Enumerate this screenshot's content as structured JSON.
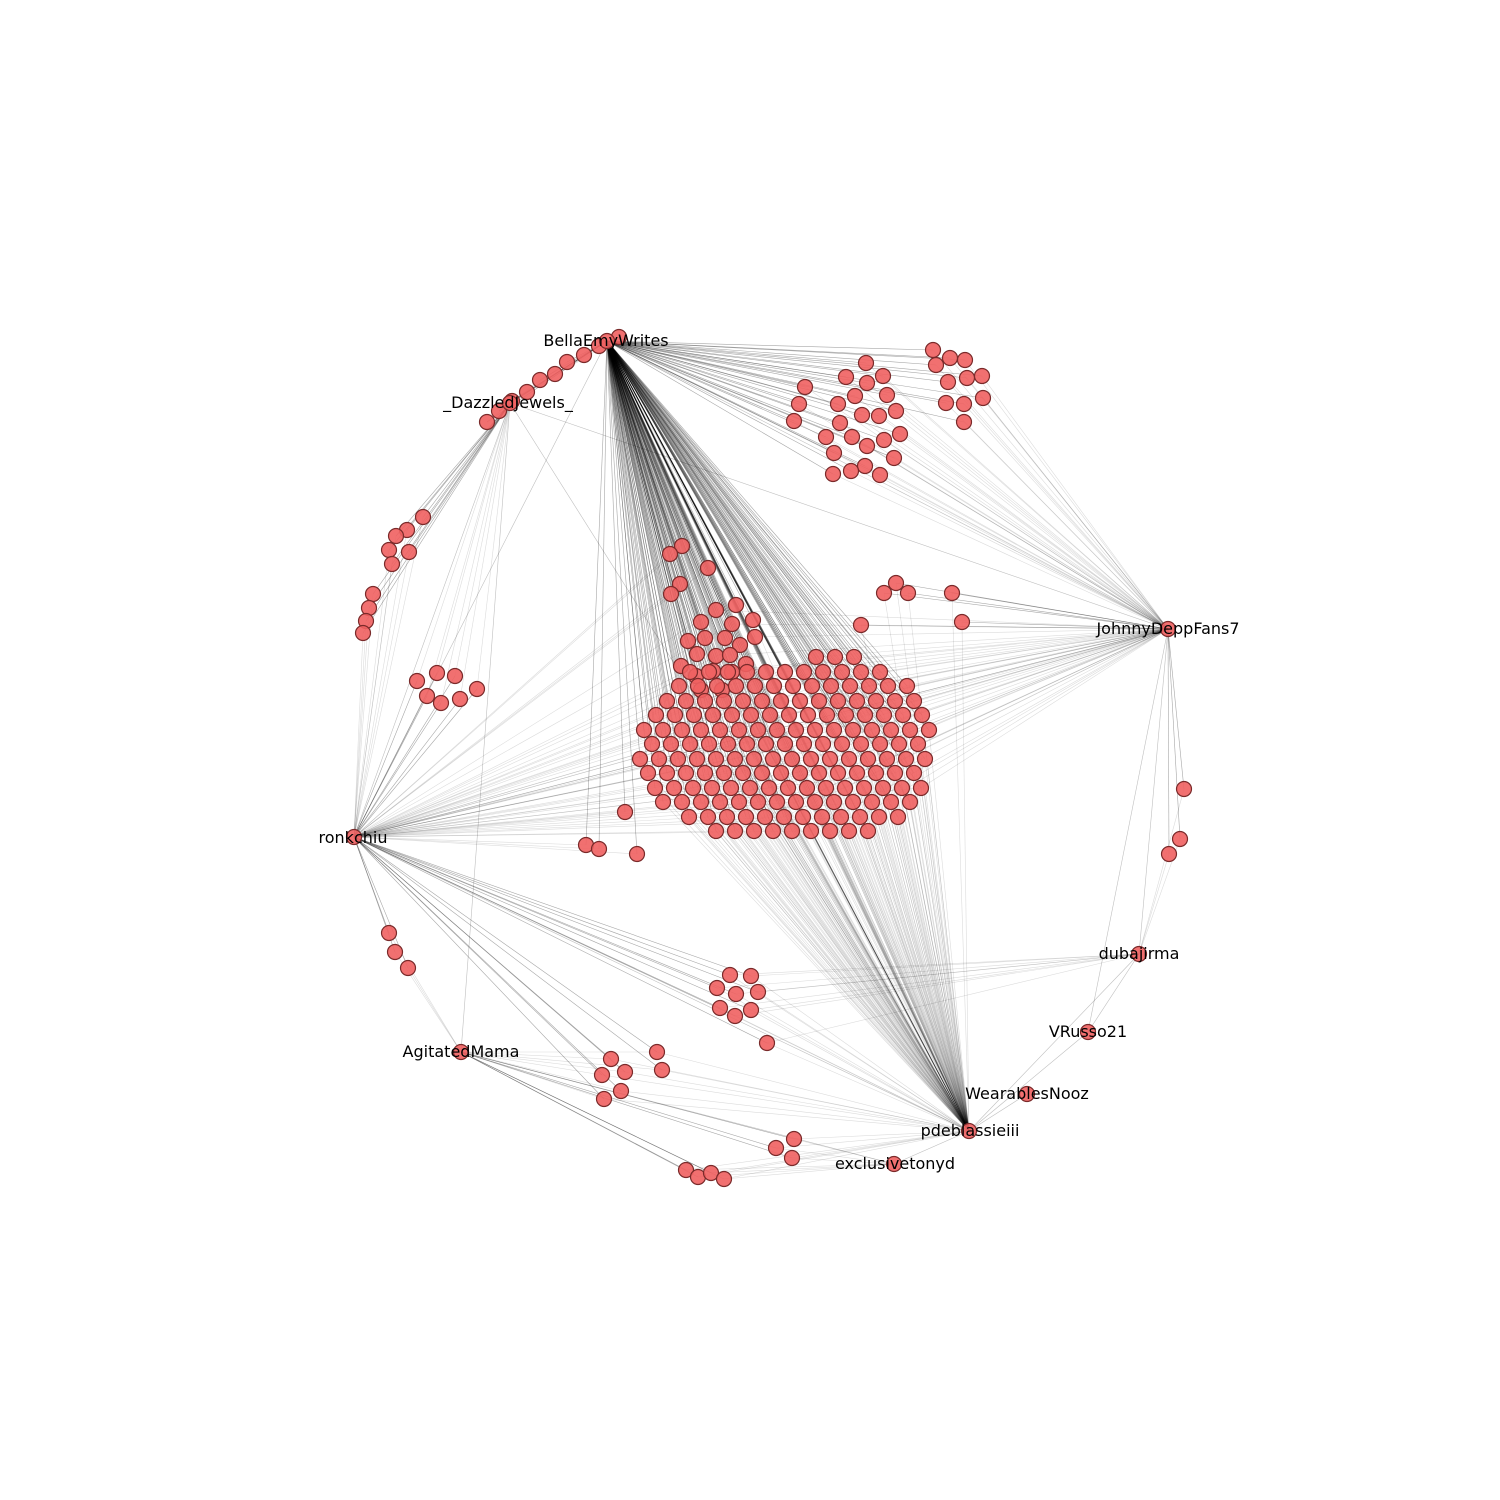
{
  "graph": {
    "node_fill": "#f06060",
    "node_stroke": "#7a2a2a",
    "edge_color": "#000000",
    "hubs": [
      {
        "id": "BellaEmyWrites",
        "label": "BellaEmyWrites"
      },
      {
        "id": "DazzledJewels",
        "label": "_DazzledJewels_"
      },
      {
        "id": "JohnnyDeppFans7",
        "label": "JohnnyDeppFans7"
      },
      {
        "id": "ronkchiu",
        "label": "ronkchiu"
      },
      {
        "id": "dubajirma",
        "label": "dubajirma"
      },
      {
        "id": "VRusso21",
        "label": "VRusso21"
      },
      {
        "id": "AgitatedMama",
        "label": "AgitatedMama"
      },
      {
        "id": "WearablesNooz",
        "label": "WearablesNooz"
      },
      {
        "id": "pdeblassieiii",
        "label": "pdeblassieiii"
      },
      {
        "id": "exclusivetonyd",
        "label": "exclusivetonyd"
      }
    ]
  }
}
